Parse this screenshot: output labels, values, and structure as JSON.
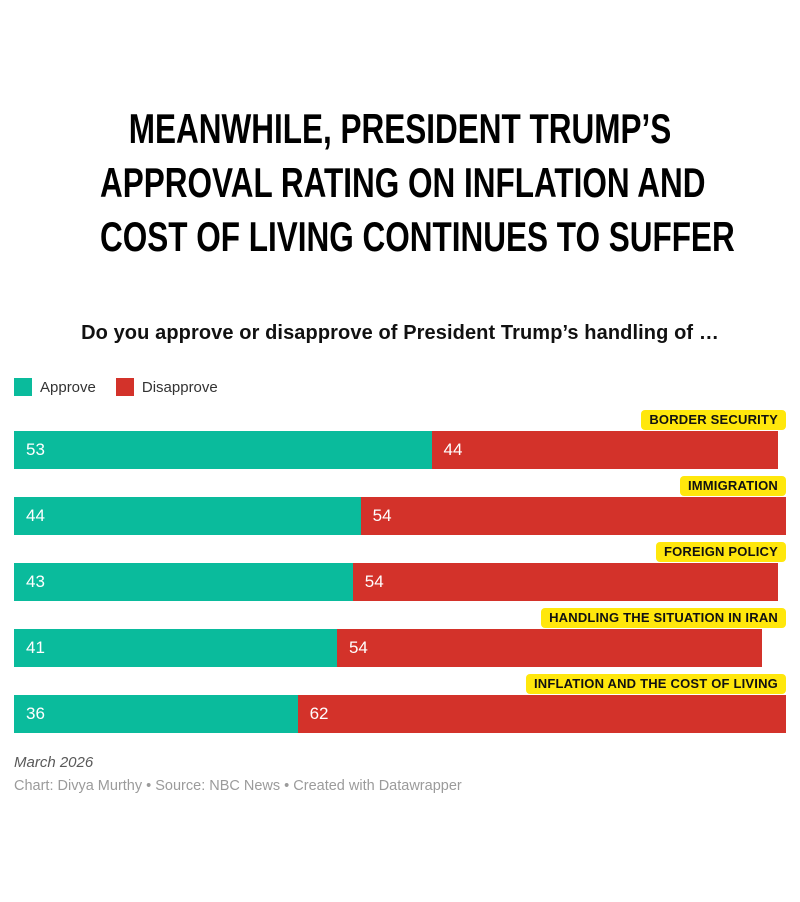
{
  "header": {
    "title_lines": [
      "MEANWHILE, PRESIDENT TRUMP’S",
      "APPROVAL RATING ON INFLATION AND",
      "COST OF LIVING CONTINUES TO SUFFER"
    ],
    "subtitle": "Do you approve or disapprove of President Trump’s handling of …"
  },
  "legend": {
    "items": [
      {
        "label": "Approve",
        "color": "#0abb9c"
      },
      {
        "label": "Disapprove",
        "color": "#d3322a"
      }
    ]
  },
  "chart_data": {
    "type": "bar",
    "orientation": "horizontal-stacked",
    "title": "Do you approve or disapprove of President Trump’s handling of …",
    "categories": [
      "BORDER SECURITY",
      "IMMIGRATION",
      "FOREIGN POLICY",
      "HANDLING THE SITUATION IN IRAN",
      "INFLATION AND THE COST OF LIVING"
    ],
    "series": [
      {
        "name": "Approve",
        "color": "#0abb9c",
        "values": [
          53,
          44,
          43,
          41,
          36
        ]
      },
      {
        "name": "Disapprove",
        "color": "#d3322a",
        "values": [
          44,
          54,
          54,
          54,
          62
        ]
      }
    ],
    "x_max": 98,
    "grid": false,
    "legend_position": "top-left",
    "value_labels": "inside-start",
    "category_label_bg": "#ffe70c",
    "value_label_color": "#ffffff"
  },
  "footer": {
    "date_note": "March 2026",
    "credit": "Chart: Divya Murthy • Source: NBC News • Created with Datawrapper"
  }
}
